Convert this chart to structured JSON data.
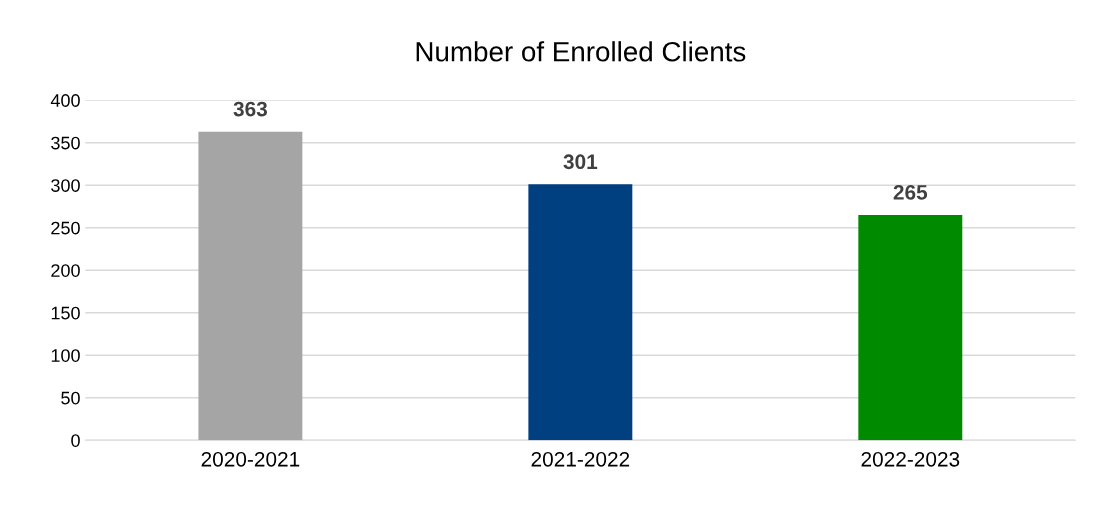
{
  "chart_data": {
    "type": "bar",
    "title": "Number of Enrolled Clients",
    "categories": [
      "2020-2021",
      "2021-2022",
      "2022-2023"
    ],
    "values": [
      363,
      301,
      265
    ],
    "colors": [
      "#a5a5a5",
      "#004080",
      "#008a00"
    ],
    "ylim": [
      0,
      400
    ],
    "yticks": [
      0,
      50,
      100,
      150,
      200,
      250,
      300,
      350,
      400
    ],
    "grid": "y",
    "data_labels": true
  }
}
